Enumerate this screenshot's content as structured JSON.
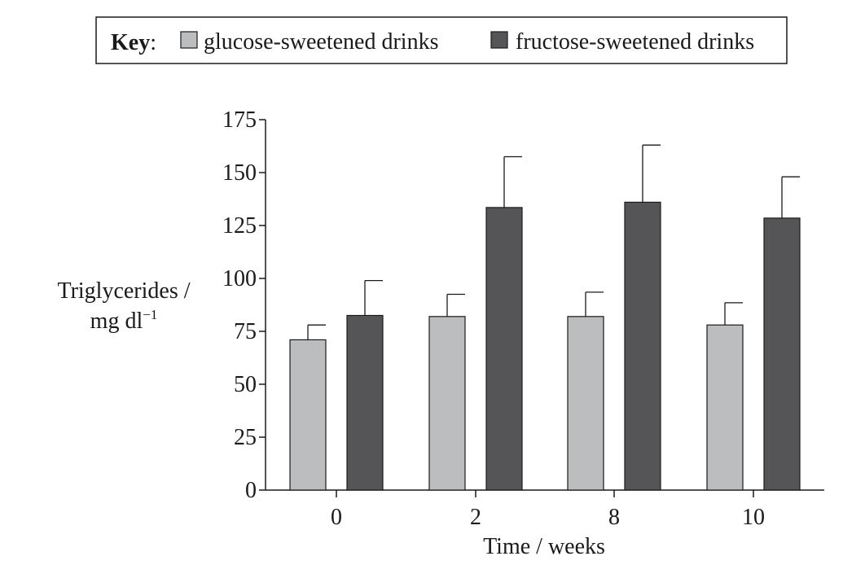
{
  "chart_data": {
    "type": "bar",
    "title": "",
    "legend": {
      "label": "Key",
      "placement": "top"
    },
    "xlabel": "Time / weeks",
    "ylabel_line1": "Triglycerides /",
    "ylabel_line2_base": "mg dl",
    "ylabel_line2_sup": "−1",
    "categories": [
      "0",
      "2",
      "8",
      "10"
    ],
    "ylim": [
      0,
      175
    ],
    "yticks": [
      0,
      25,
      50,
      75,
      100,
      125,
      150,
      175
    ],
    "series": [
      {
        "name": "glucose-sweetened drinks",
        "color": "#bcbdbf",
        "values": [
          71,
          82,
          82,
          78
        ],
        "error_upper": [
          78,
          92.5,
          93.5,
          88.5
        ]
      },
      {
        "name": "fructose-sweetened drinks",
        "color": "#555557",
        "values": [
          82.5,
          133.5,
          136,
          128.5
        ],
        "error_upper": [
          99,
          157.5,
          163,
          148
        ]
      }
    ]
  }
}
